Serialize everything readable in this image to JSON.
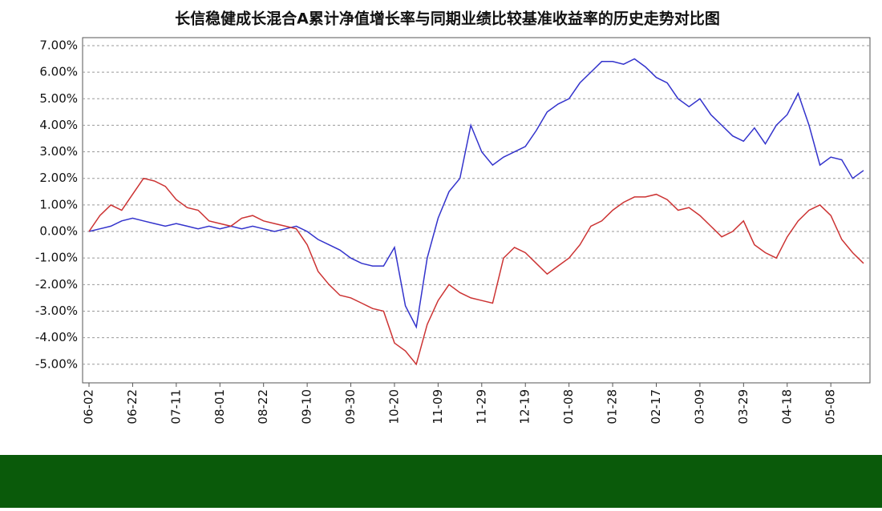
{
  "chart_data": {
    "type": "line",
    "title": "长信稳健成长混合A累计净值增长率与同期业绩比较基准收益率的历史走势对比图",
    "categories": [
      "06-02",
      null,
      null,
      null,
      "06-22",
      null,
      null,
      null,
      "07-11",
      null,
      null,
      null,
      "08-01",
      null,
      null,
      null,
      "08-22",
      null,
      null,
      null,
      "09-10",
      null,
      null,
      null,
      "09-30",
      null,
      null,
      null,
      "10-20",
      null,
      null,
      null,
      "11-09",
      null,
      null,
      null,
      "11-29",
      null,
      null,
      null,
      "12-19",
      null,
      null,
      null,
      "01-08",
      null,
      null,
      null,
      "01-28",
      null,
      null,
      null,
      "02-17",
      null,
      null,
      null,
      "03-09",
      null,
      null,
      null,
      "03-29",
      null,
      null,
      null,
      "04-18",
      null,
      null,
      null,
      "05-08",
      null,
      null,
      null
    ],
    "series": [
      {
        "color": "#3333cc",
        "values": [
          0,
          0.1,
          0.2,
          0.4,
          0.5,
          0.4,
          0.3,
          0.2,
          0.3,
          0.2,
          0.1,
          0.2,
          0.1,
          0.2,
          0.1,
          0.2,
          0.1,
          0.0,
          0.1,
          0.2,
          0.0,
          -0.3,
          -0.5,
          -0.7,
          -1.0,
          -1.2,
          -1.3,
          -1.3,
          -0.6,
          -2.8,
          -3.6,
          -1.0,
          0.5,
          1.5,
          2.0,
          4.0,
          3.0,
          2.5,
          2.8,
          3.0,
          3.2,
          3.8,
          4.5,
          4.8,
          5.0,
          5.6,
          6.0,
          6.4,
          6.4,
          6.3,
          6.5,
          6.2,
          5.8,
          5.6,
          5.0,
          4.7,
          5.0,
          4.4,
          4.0,
          3.6,
          3.4,
          3.9,
          3.3,
          4.0,
          4.4,
          5.2,
          4.0,
          2.5,
          2.8,
          2.7,
          2.0,
          2.3
        ]
      },
      {
        "color": "#cc3333",
        "values": [
          0,
          0.6,
          1.0,
          0.8,
          1.4,
          2.0,
          1.9,
          1.7,
          1.2,
          0.9,
          0.8,
          0.4,
          0.3,
          0.2,
          0.5,
          0.6,
          0.4,
          0.3,
          0.2,
          0.1,
          -0.5,
          -1.5,
          -2.0,
          -2.4,
          -2.5,
          -2.7,
          -2.9,
          -3.0,
          -4.2,
          -4.5,
          -5.0,
          -3.5,
          -2.6,
          -2.0,
          -2.3,
          -2.5,
          -2.6,
          -2.7,
          -1.0,
          -0.6,
          -0.8,
          -1.2,
          -1.6,
          -1.3,
          -1.0,
          -0.5,
          0.2,
          0.4,
          0.8,
          1.1,
          1.3,
          1.3,
          1.4,
          1.2,
          0.8,
          0.9,
          0.6,
          0.2,
          -0.2,
          0.0,
          0.4,
          -0.5,
          -0.8,
          -1.0,
          -0.2,
          0.4,
          0.8,
          1.0,
          0.6,
          -0.3,
          -0.8,
          -1.2
        ]
      }
    ],
    "ylim": [
      -5.7,
      7.3
    ],
    "yticks": [
      {
        "value": 7,
        "label": "7.00%"
      },
      {
        "value": 6,
        "label": "6.00%"
      },
      {
        "value": 5,
        "label": "5.00%"
      },
      {
        "value": 4,
        "label": "4.00%"
      },
      {
        "value": 3,
        "label": "3.00%"
      },
      {
        "value": 2,
        "label": "2.00%"
      },
      {
        "value": 1,
        "label": "1.00%"
      },
      {
        "value": 0,
        "label": "0.00%"
      },
      {
        "value": -1,
        "label": "-1.00%"
      },
      {
        "value": -2,
        "label": "-2.00%"
      },
      {
        "value": -3,
        "label": "-3.00%"
      },
      {
        "value": -4,
        "label": "-4.00%"
      },
      {
        "value": -5,
        "label": "-5.00%"
      }
    ],
    "grid": true
  }
}
